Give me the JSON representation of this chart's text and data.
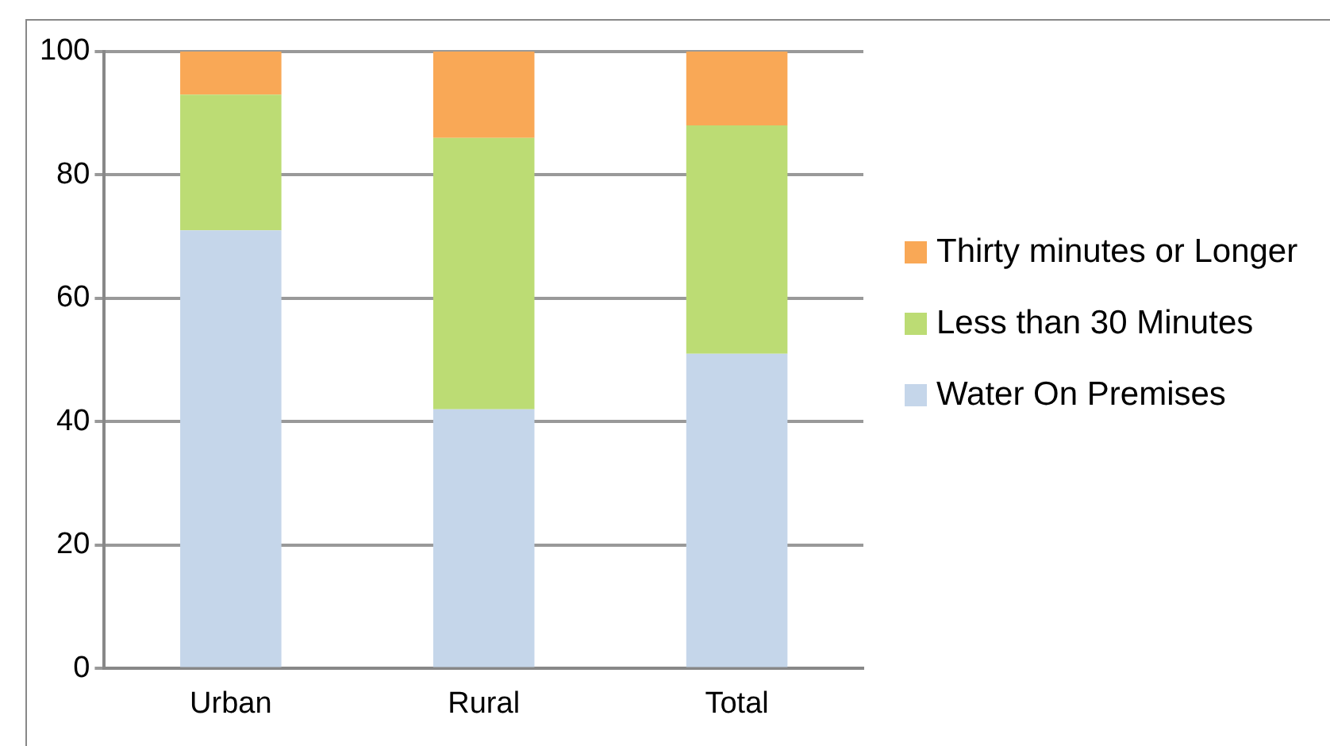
{
  "chart_data": {
    "type": "bar",
    "stacked": true,
    "categories": [
      "Urban",
      "Rural",
      "Total"
    ],
    "series": [
      {
        "name": "Water On Premises",
        "color": "#c5d6ea",
        "values": [
          71,
          42,
          51
        ]
      },
      {
        "name": "Less than 30 Minutes",
        "color": "#bcdc74",
        "values": [
          22,
          44,
          37
        ]
      },
      {
        "name": "Thirty minutes or Longer",
        "color": "#f9a856",
        "values": [
          7,
          14,
          12
        ]
      }
    ],
    "ylim": [
      0,
      100
    ],
    "yticks": [
      0,
      20,
      40,
      60,
      80,
      100
    ],
    "grid": "y",
    "legend": "right"
  }
}
